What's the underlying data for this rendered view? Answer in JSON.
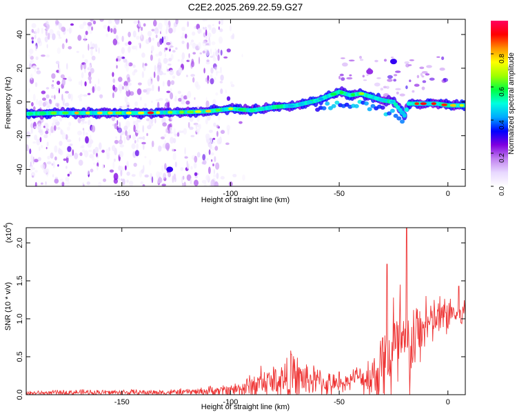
{
  "chart_data": [
    {
      "type": "heatmap",
      "title": "C2E2.2025.269.22.59.G27",
      "xlabel": "Height of straight line (km)",
      "ylabel": "Frequency (Hz)",
      "xlim": [
        -194,
        8
      ],
      "ylim": [
        -50,
        49
      ],
      "xticks": [
        -150,
        -100,
        -50,
        0
      ],
      "yticks": [
        -40,
        -20,
        0,
        20,
        40
      ],
      "grid": false,
      "colorbar": {
        "label": "Normalized spectral amplitude",
        "range": [
          0,
          1
        ],
        "ticks": [
          "0.0",
          "0.2",
          "0.4",
          "0.6",
          "0.8"
        ],
        "colors": [
          "#ffffff",
          "#e8d8ff",
          "#c080f0",
          "#8000e0",
          "#0000ff",
          "#00aaff",
          "#00ffe0",
          "#00ff40",
          "#a0ff00",
          "#ffff00",
          "#ff9000",
          "#ff0000",
          "#ff0060"
        ]
      },
      "ridge": {
        "x": [
          -194,
          -180,
          -160,
          -140,
          -120,
          -110,
          -100,
          -90,
          -80,
          -70,
          -60,
          -50,
          -45,
          -40,
          -35,
          -30,
          -25,
          -20,
          -18,
          -15,
          -10,
          -5,
          0,
          5,
          8
        ],
        "y": [
          -7,
          -6.5,
          -6.5,
          -6.5,
          -6,
          -5.5,
          -4,
          -5,
          -3,
          -2,
          1,
          6,
          4,
          5,
          3,
          1,
          0,
          -8,
          -1,
          -1,
          -1,
          -1,
          -2,
          -2,
          -2
        ],
        "amplitude": [
          0.55,
          0.75,
          0.8,
          0.9,
          0.7,
          0.85,
          0.7,
          0.6,
          0.55,
          0.5,
          0.5,
          0.6,
          0.65,
          0.7,
          0.5,
          0.55,
          0.45,
          0.55,
          0.6,
          0.95,
          0.9,
          0.85,
          0.9,
          0.85,
          0.8
        ]
      }
    },
    {
      "type": "line",
      "xlabel": "Height of straight line (km)",
      "ylabel": "SNR (10 * v/v)",
      "multiplier_label": "(x10",
      "multiplier_exp": "4",
      "xlim": [
        -194,
        8
      ],
      "ylim": [
        0,
        2.2
      ],
      "xticks": [
        -150,
        -100,
        -50,
        0
      ],
      "yticks": [
        0,
        0.5,
        1,
        1.5,
        2
      ],
      "ytick_labels": [
        "0.0",
        "0.5",
        "1.0",
        "1.5",
        "2.0"
      ],
      "grid": false,
      "line_color": "#ee3333",
      "envelope": {
        "x": [
          -194,
          -170,
          -150,
          -130,
          -115,
          -105,
          -95,
          -90,
          -85,
          -80,
          -75,
          -72,
          -65,
          -60,
          -55,
          -50,
          -45,
          -42,
          -40,
          -35,
          -32,
          -30,
          -28,
          -25,
          -22,
          -20,
          -18,
          -15,
          -10,
          -5,
          0,
          2,
          5,
          8
        ],
        "baseline": [
          0.02,
          0.03,
          0.03,
          0.03,
          0.04,
          0.05,
          0.08,
          0.12,
          0.15,
          0.18,
          0.2,
          0.22,
          0.2,
          0.18,
          0.14,
          0.12,
          0.2,
          0.25,
          0.2,
          0.25,
          0.3,
          0.4,
          0.45,
          0.5,
          0.6,
          0.55,
          0.5,
          0.75,
          0.9,
          1.0,
          1.05,
          1.1,
          1.0,
          1.1
        ],
        "amplitude": [
          0.03,
          0.04,
          0.04,
          0.04,
          0.05,
          0.08,
          0.12,
          0.18,
          0.2,
          0.25,
          0.3,
          0.35,
          0.25,
          0.2,
          0.18,
          0.1,
          0.12,
          0.12,
          0.15,
          0.35,
          0.5,
          0.6,
          0.6,
          0.7,
          0.7,
          0.8,
          0.7,
          0.5,
          0.35,
          0.3,
          0.3,
          0.25,
          0.2,
          0.2
        ]
      },
      "peaks": [
        {
          "x": -110,
          "y": 0.11
        },
        {
          "x": -86,
          "y": 0.38
        },
        {
          "x": -72,
          "y": 0.53
        },
        {
          "x": -50,
          "y": 0.3
        },
        {
          "x": -42,
          "y": 0.36
        },
        {
          "x": -30,
          "y": 0.75
        },
        {
          "x": -28,
          "y": 1.72
        },
        {
          "x": -25,
          "y": 1.28
        },
        {
          "x": -22,
          "y": 1.45
        },
        {
          "x": -19,
          "y": 2.22
        },
        {
          "x": -10,
          "y": 1.3
        },
        {
          "x": 5,
          "y": 1.43
        }
      ]
    }
  ]
}
